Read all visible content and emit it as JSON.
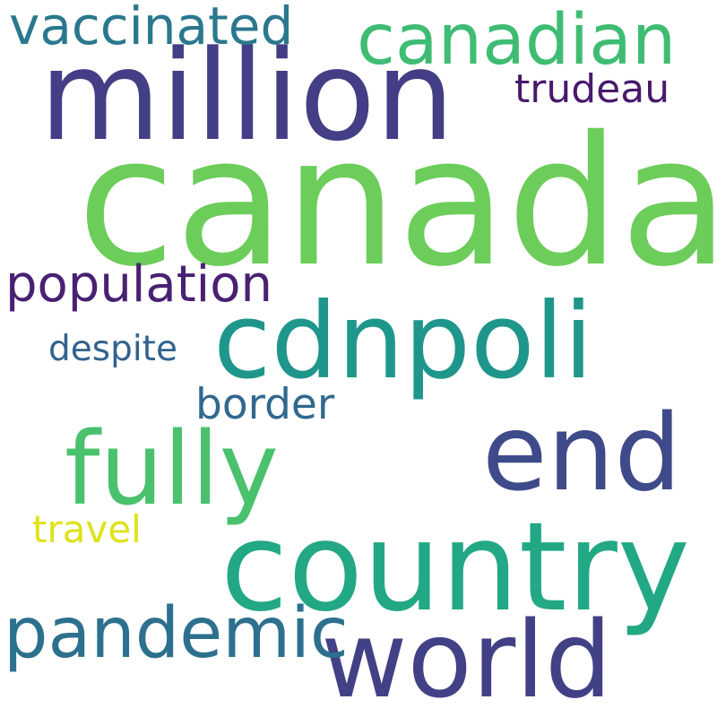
{
  "words": [
    {
      "text": "canada",
      "color": "#6ccd5a"
    },
    {
      "text": "million",
      "color": "#433e85"
    },
    {
      "text": "country",
      "color": "#22a884"
    },
    {
      "text": "cdnpoli",
      "color": "#1f968b"
    },
    {
      "text": "end",
      "color": "#3e4a89"
    },
    {
      "text": "world",
      "color": "#424186"
    },
    {
      "text": "fully",
      "color": "#4ac16d"
    },
    {
      "text": "canadian",
      "color": "#3fbc73"
    },
    {
      "text": "pandemic",
      "color": "#2d708e"
    },
    {
      "text": "vaccinated",
      "color": "#2a788e"
    },
    {
      "text": "population",
      "color": "#482173"
    },
    {
      "text": "trudeau",
      "color": "#481a6c"
    },
    {
      "text": "border",
      "color": "#31688e"
    },
    {
      "text": "despite",
      "color": "#33638d"
    },
    {
      "text": "travel",
      "color": "#dde318"
    }
  ]
}
